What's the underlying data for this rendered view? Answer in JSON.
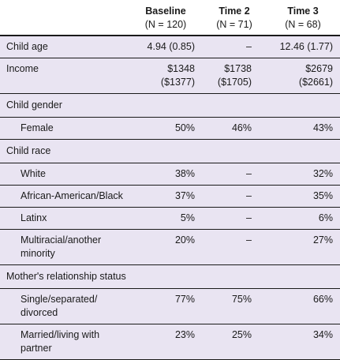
{
  "header": {
    "col1_title": "Baseline",
    "col1_n": "(N = 120)",
    "col2_title": "Time 2",
    "col2_n": "(N = 71)",
    "col3_title": "Time 3",
    "col3_n": "(N = 68)"
  },
  "rows": [
    {
      "label": "Child age",
      "baseline": "4.94 (0.85)",
      "time2": "–",
      "time3": "12.46 (1.77)"
    },
    {
      "label": "Income",
      "baseline": "$1348 ($1377)",
      "time2": "$1738 ($1705)",
      "time3": "$2679 ($2661)"
    },
    {
      "label": "Child gender"
    },
    {
      "label": "Female",
      "baseline": "50%",
      "time2": "46%",
      "time3": "43%"
    },
    {
      "label": "Child race"
    },
    {
      "label": "White",
      "baseline": "38%",
      "time2": "–",
      "time3": "32%"
    },
    {
      "label": "African-American/Black",
      "baseline": "37%",
      "time2": "–",
      "time3": "35%"
    },
    {
      "label": "Latinx",
      "baseline": "5%",
      "time2": "–",
      "time3": "6%"
    },
    {
      "label": "Multiracial/another minority",
      "baseline": "20%",
      "time2": "–",
      "time3": "27%"
    },
    {
      "label": "Mother's relationship status"
    },
    {
      "label": "Single/separated/ divorced",
      "baseline": "77%",
      "time2": "75%",
      "time3": "66%"
    },
    {
      "label": "Married/living with partner",
      "baseline": "23%",
      "time2": "25%",
      "time3": "34%"
    }
  ]
}
